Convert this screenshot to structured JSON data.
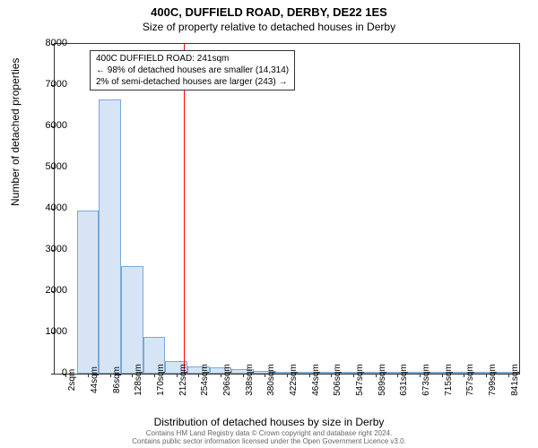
{
  "title": "400C, DUFFIELD ROAD, DERBY, DE22 1ES",
  "subtitle": "Size of property relative to detached houses in Derby",
  "chart": {
    "type": "histogram",
    "x_categories": [
      "2sqm",
      "44sqm",
      "86sqm",
      "128sqm",
      "170sqm",
      "212sqm",
      "254sqm",
      "296sqm",
      "338sqm",
      "380sqm",
      "422sqm",
      "464sqm",
      "506sqm",
      "547sqm",
      "589sqm",
      "631sqm",
      "673sqm",
      "715sqm",
      "757sqm",
      "799sqm",
      "841sqm"
    ],
    "values": [
      0,
      3950,
      6650,
      2600,
      900,
      300,
      180,
      150,
      100,
      60,
      40,
      30,
      20,
      10,
      10,
      10,
      10,
      5,
      5,
      5,
      5
    ],
    "bar_color": "#d6e4f5",
    "bar_border_color": "#7aa8d8",
    "ylim": [
      0,
      8000
    ],
    "ytick_step": 1000,
    "y_ticks": [
      0,
      1000,
      2000,
      3000,
      4000,
      5000,
      6000,
      7000,
      8000
    ],
    "ylabel": "Number of detached properties",
    "xlabel": "Distribution of detached houses by size in Derby",
    "background_color": "#ffffff",
    "axis_color": "#333333",
    "marker": {
      "x_position": 241,
      "x_range": [
        2,
        862
      ],
      "line_color": "#ff0000",
      "line_width": 1
    },
    "annotation": {
      "line1": "400C DUFFIELD ROAD: 241sqm",
      "line2": "← 98% of detached houses are smaller (14,314)",
      "line3": "2% of semi-detached houses are larger (243) →"
    }
  },
  "footer": {
    "line1": "Contains HM Land Registry data © Crown copyright and database right 2024.",
    "line2": "Contains public sector information licensed under the Open Government Licence v3.0."
  }
}
